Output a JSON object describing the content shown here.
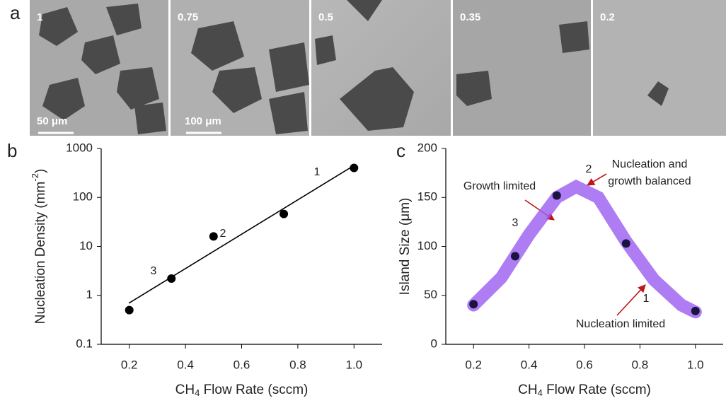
{
  "panel_letters": [
    "a",
    "b",
    "c"
  ],
  "images": [
    {
      "label": "1",
      "scale_bar": "50 μm"
    },
    {
      "label": "0.75",
      "scale_bar": "100 μm"
    },
    {
      "label": "0.5"
    },
    {
      "label": "0.35"
    },
    {
      "label": "0.2"
    }
  ],
  "chart_data": [
    {
      "type": "scatter",
      "log_y": true,
      "xlabel_main": "CH",
      "xlabel_sub": "4",
      "xlabel_end": " Flow Rate (sccm)",
      "ylabel_main": "Nucleation Density (mm",
      "ylabel_sup": "-2",
      "ylabel_end": ")",
      "xlim": [
        0.1,
        1.1
      ],
      "xticks": [
        0.2,
        0.4,
        0.6,
        0.8,
        {
          "value": 1,
          "label": "1.0"
        }
      ],
      "ylim": [
        0.1,
        1000
      ],
      "yticks": [
        0.1,
        1,
        10,
        100,
        1000
      ],
      "points": {
        "color": "#000000",
        "x": [
          0.2,
          0.35,
          0.5,
          0.75,
          1.0
        ],
        "values": [
          0.5,
          2.2,
          16,
          46,
          400
        ]
      },
      "curve": {
        "color": "#000000",
        "x": [
          0.2,
          1.0
        ],
        "values": [
          0.7,
          450
        ]
      },
      "annotations": [
        "1",
        "2",
        "3"
      ]
    },
    {
      "type": "scatter",
      "log_y": false,
      "xlabel_main": "CH",
      "xlabel_sub": "4",
      "xlabel_end": " Flow Rate (sccm)",
      "ylabel": "Island Size (μm)",
      "xlim": [
        0.1,
        1.1
      ],
      "xticks": [
        0.2,
        0.4,
        0.6,
        0.8,
        {
          "value": 1,
          "label": "1.0"
        }
      ],
      "ylim": [
        0,
        200
      ],
      "yticks": [
        0,
        50,
        100,
        150,
        200
      ],
      "points": {
        "color": "#1a1440",
        "x": [
          0.2,
          0.35,
          0.5,
          0.75,
          1.0
        ],
        "values": [
          41,
          90,
          152,
          103,
          34
        ]
      },
      "curve": {
        "color": "#9b5cf0",
        "x": [
          0.2,
          0.3,
          0.4,
          0.5,
          0.57,
          0.65,
          0.75,
          0.85,
          0.95,
          1.0
        ],
        "values": [
          40,
          68,
          112,
          150,
          161,
          150,
          105,
          66,
          40,
          33
        ]
      },
      "annotations": [
        "2",
        "Nucleation and",
        "growth balanced",
        "Growth limited",
        "3",
        "1",
        "Nucleation limited"
      ]
    }
  ]
}
